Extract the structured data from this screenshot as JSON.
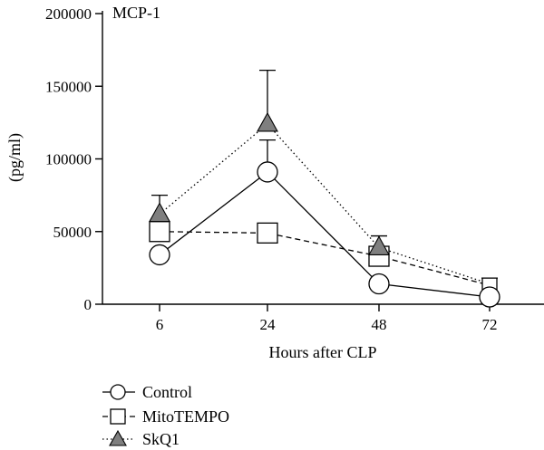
{
  "chart_data": {
    "type": "line",
    "title": "MCP-1",
    "xlabel": "Hours after CLP",
    "ylabel": "(pg/ml)",
    "categories": [
      "6",
      "24",
      "48",
      "72"
    ],
    "yticks": [
      "0",
      "50000",
      "100000",
      "150000",
      "200000"
    ],
    "ylim": [
      0,
      200000
    ],
    "grid": false,
    "legend_position": "bottom-left",
    "series": [
      {
        "name": "Control",
        "marker": "circle-open",
        "line_style": "solid",
        "values": [
          34000,
          91000,
          14000,
          5000
        ],
        "error_upper": [
          null,
          113000,
          null,
          null
        ]
      },
      {
        "name": "MitoTEMPO",
        "marker": "square-open",
        "line_style": "dashed",
        "values": [
          50000,
          49000,
          33000,
          13000
        ],
        "error_upper": [
          56000,
          null,
          47000,
          18000
        ]
      },
      {
        "name": "SkQ1",
        "marker": "triangle-filled",
        "line_style": "dotted",
        "color": "#7f7f7f",
        "values": [
          62000,
          124000,
          39000,
          14000
        ],
        "error_upper": [
          75000,
          161000,
          null,
          null
        ]
      }
    ]
  }
}
